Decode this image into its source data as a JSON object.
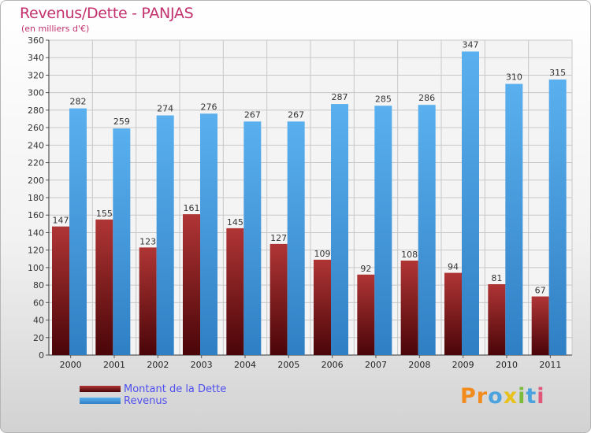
{
  "title": "Revenus/Dette - PANJAS",
  "subtitle": "(en milliers d'€)",
  "logo": "Proxiti",
  "colors": {
    "title": "#c3316e",
    "debt": "#7a1520",
    "revenue": "#55aaea",
    "legend_text": "#4f4ff0"
  },
  "chart_data": {
    "type": "bar",
    "title": "Revenus/Dette - PANJAS",
    "subtitle": "(en milliers d'€)",
    "categories": [
      "2000",
      "2001",
      "2002",
      "2003",
      "2004",
      "2005",
      "2006",
      "2007",
      "2008",
      "2009",
      "2010",
      "2011"
    ],
    "series": [
      {
        "name": "Montant de la Dette",
        "values": [
          147,
          155,
          123,
          161,
          145,
          127,
          109,
          92,
          108,
          94,
          81,
          67
        ]
      },
      {
        "name": "Revenus",
        "values": [
          282,
          259,
          274,
          276,
          267,
          267,
          287,
          285,
          286,
          347,
          310,
          315
        ]
      }
    ],
    "ylim": [
      0,
      360
    ],
    "yticks": [
      0,
      20,
      40,
      60,
      80,
      100,
      120,
      140,
      160,
      180,
      200,
      220,
      240,
      260,
      280,
      300,
      320,
      340,
      360
    ],
    "grid": true,
    "legend": "bottom-left"
  }
}
